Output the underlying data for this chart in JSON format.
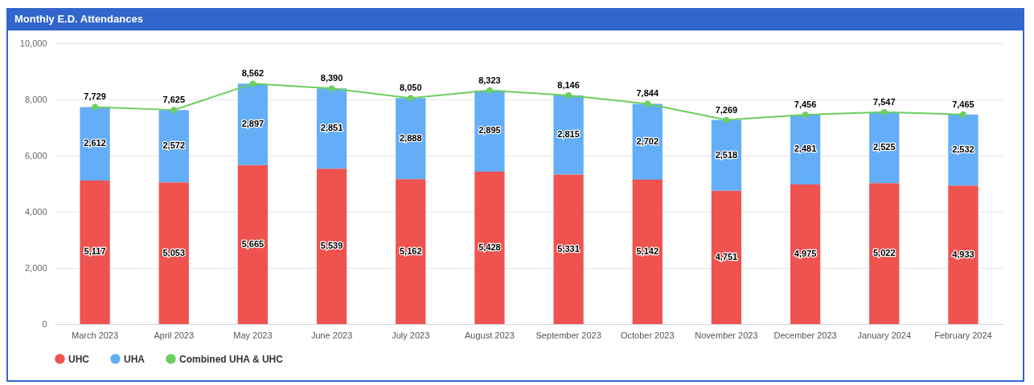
{
  "chart_data": {
    "type": "bar",
    "title": "Monthly E.D. Attendances",
    "stacked": true,
    "categories": [
      "March 2023",
      "April 2023",
      "May 2023",
      "June 2023",
      "July 2023",
      "August 2023",
      "September 2023",
      "October 2023",
      "November 2023",
      "December 2023",
      "January 2024",
      "February 2024"
    ],
    "series": [
      {
        "name": "UHC",
        "color": "#ef5350",
        "values": [
          5117,
          5053,
          5665,
          5539,
          5162,
          5428,
          5331,
          5142,
          4751,
          4975,
          5022,
          4933
        ],
        "value_labels": [
          "5,117",
          "5,053",
          "5,665",
          "5,539",
          "5,162",
          "5,428",
          "5,331",
          "5,142",
          "4,751",
          "4,975",
          "5,022",
          "4,933"
        ]
      },
      {
        "name": "UHA",
        "color": "#64aef7",
        "values": [
          2612,
          2572,
          2897,
          2851,
          2888,
          2895,
          2815,
          2702,
          2518,
          2481,
          2525,
          2532
        ],
        "value_labels": [
          "2,612",
          "2,572",
          "2,897",
          "2,851",
          "2,888",
          "2,895",
          "2,815",
          "2,702",
          "2,518",
          "2,481",
          "2,525",
          "2,532"
        ]
      },
      {
        "name": "Combined UHA & UHC",
        "type": "line",
        "color": "#6ccf5f",
        "marker": "circle",
        "values": [
          7729,
          7625,
          8562,
          8390,
          8050,
          8323,
          8146,
          7844,
          7269,
          7456,
          7547,
          7465
        ],
        "value_labels": [
          "7,729",
          "7,625",
          "8,562",
          "8,390",
          "8,050",
          "8,323",
          "8,146",
          "7,844",
          "7,269",
          "7,456",
          "7,547",
          "7,465"
        ]
      }
    ],
    "ylim": [
      0,
      10000
    ],
    "yticks": [
      0,
      {
        "value": 2000,
        "label": "2,000"
      },
      {
        "value": 4000,
        "label": "4,000"
      },
      {
        "value": 6000,
        "label": "6,000"
      },
      {
        "value": 8000,
        "label": "8,000"
      },
      {
        "value": 10000,
        "label": "10,000"
      }
    ],
    "grid": "y",
    "legend": "bottom"
  }
}
